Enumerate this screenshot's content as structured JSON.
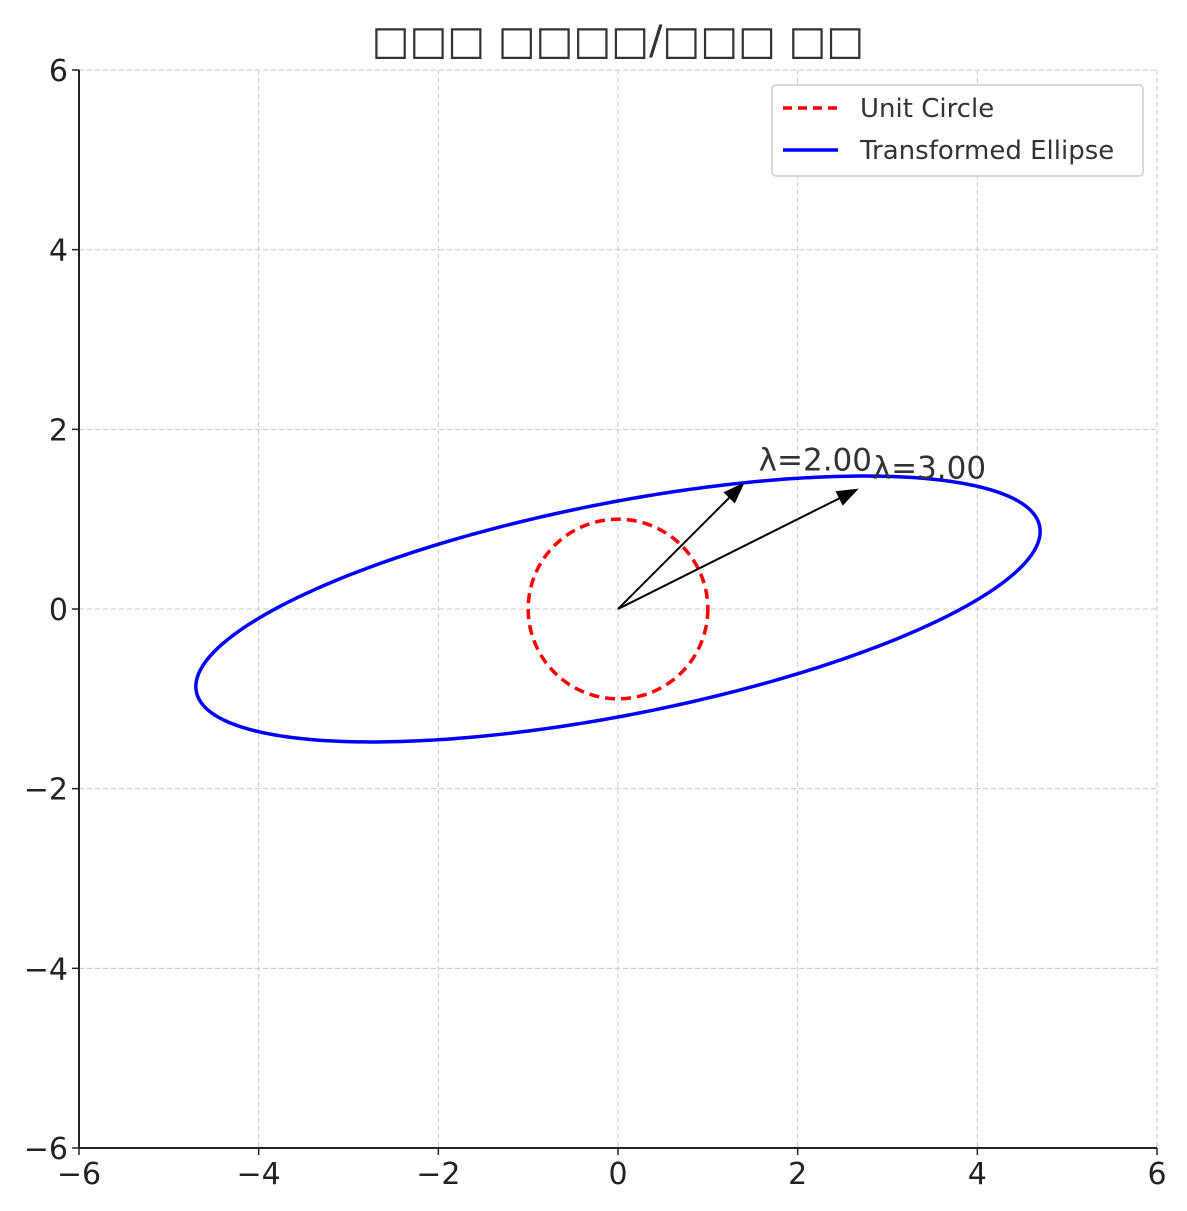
{
  "chart_data": {
    "type": "line",
    "title": "□□□ □□□□/□□□ □□",
    "xlabel": "",
    "ylabel": "",
    "xlim": [
      -6,
      6
    ],
    "ylim": [
      -6,
      6
    ],
    "xticks": [
      -6,
      -4,
      -2,
      0,
      2,
      4,
      6
    ],
    "yticks": [
      -6,
      -4,
      -2,
      0,
      2,
      4,
      6
    ],
    "xtick_labels": [
      "−6",
      "−4",
      "−2",
      "0",
      "2",
      "4",
      "6"
    ],
    "ytick_labels": [
      "−6",
      "−4",
      "−2",
      "0",
      "2",
      "4",
      "6"
    ],
    "grid": true,
    "legend_position": "top-right",
    "series": [
      {
        "name": "Unit Circle",
        "style": "dashed",
        "color": "#ff0000",
        "shape": "circle",
        "center": [
          0,
          0
        ],
        "radius": 1
      },
      {
        "name": "Transformed Ellipse",
        "style": "solid",
        "color": "#0000ff",
        "shape": "ellipse",
        "center": [
          0,
          0
        ],
        "extreme_points": {
          "rightmost": [
            4.47,
            0.45
          ],
          "leftmost": [
            -4.47,
            -0.45
          ],
          "topmost": [
            1.45,
            1.41
          ],
          "bottommost": [
            -1.45,
            -1.41
          ]
        }
      }
    ],
    "vectors": [
      {
        "label": "λ=2.00",
        "from": [
          0,
          0
        ],
        "to": [
          1.41,
          1.41
        ],
        "color": "#000000"
      },
      {
        "label": "λ=3.00",
        "from": [
          0,
          0
        ],
        "to": [
          2.68,
          1.34
        ],
        "color": "#000000"
      }
    ]
  }
}
